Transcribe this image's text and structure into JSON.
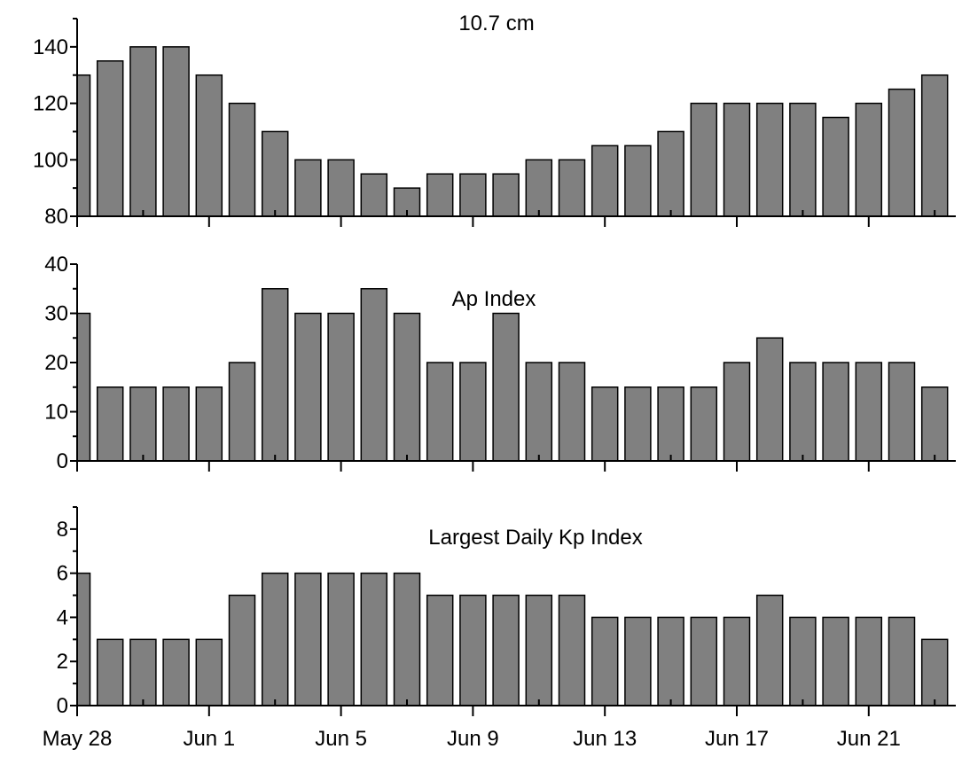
{
  "chart_data": [
    {
      "type": "bar",
      "title": "10.7 cm",
      "x": [
        "May 28",
        "May 29",
        "May 30",
        "May 31",
        "Jun 1",
        "Jun 2",
        "Jun 3",
        "Jun 4",
        "Jun 5",
        "Jun 6",
        "Jun 7",
        "Jun 8",
        "Jun 9",
        "Jun 10",
        "Jun 11",
        "Jun 12",
        "Jun 13",
        "Jun 14",
        "Jun 15",
        "Jun 16",
        "Jun 17",
        "Jun 18",
        "Jun 19",
        "Jun 20",
        "Jun 21",
        "Jun 22",
        "Jun 23"
      ],
      "values": [
        130,
        135,
        140,
        140,
        130,
        120,
        110,
        100,
        100,
        95,
        90,
        95,
        95,
        95,
        100,
        100,
        105,
        105,
        110,
        120,
        120,
        120,
        120,
        115,
        120,
        125,
        130
      ],
      "ylim": [
        80,
        150
      ],
      "yticks": [
        80,
        100,
        120,
        140
      ],
      "xticks": [],
      "xlabel": "",
      "ylabel": "",
      "grid": false
    },
    {
      "type": "bar",
      "title": "Ap Index",
      "x": [
        "May 28",
        "May 29",
        "May 30",
        "May 31",
        "Jun 1",
        "Jun 2",
        "Jun 3",
        "Jun 4",
        "Jun 5",
        "Jun 6",
        "Jun 7",
        "Jun 8",
        "Jun 9",
        "Jun 10",
        "Jun 11",
        "Jun 12",
        "Jun 13",
        "Jun 14",
        "Jun 15",
        "Jun 16",
        "Jun 17",
        "Jun 18",
        "Jun 19",
        "Jun 20",
        "Jun 21",
        "Jun 22",
        "Jun 23"
      ],
      "values": [
        30,
        15,
        15,
        15,
        15,
        20,
        35,
        30,
        30,
        35,
        30,
        20,
        20,
        30,
        20,
        20,
        15,
        15,
        15,
        15,
        20,
        25,
        20,
        20,
        20,
        20,
        15
      ],
      "ylim": [
        0,
        40
      ],
      "yticks": [
        0,
        10,
        20,
        30,
        40
      ],
      "xticks": [],
      "xlabel": "",
      "ylabel": "",
      "grid": false
    },
    {
      "type": "bar",
      "title": "Largest Daily Kp Index",
      "x": [
        "May 28",
        "May 29",
        "May 30",
        "May 31",
        "Jun 1",
        "Jun 2",
        "Jun 3",
        "Jun 4",
        "Jun 5",
        "Jun 6",
        "Jun 7",
        "Jun 8",
        "Jun 9",
        "Jun 10",
        "Jun 11",
        "Jun 12",
        "Jun 13",
        "Jun 14",
        "Jun 15",
        "Jun 16",
        "Jun 17",
        "Jun 18",
        "Jun 19",
        "Jun 20",
        "Jun 21",
        "Jun 22",
        "Jun 23"
      ],
      "values": [
        6,
        3,
        3,
        3,
        3,
        5,
        6,
        6,
        6,
        6,
        6,
        5,
        5,
        5,
        5,
        5,
        4,
        4,
        4,
        4,
        4,
        5,
        4,
        4,
        4,
        4,
        3
      ],
      "ylim": [
        0,
        9
      ],
      "yticks": [
        0,
        2,
        4,
        6,
        8
      ],
      "xticks": [
        "May 28",
        "Jun 1",
        "Jun 5",
        "Jun 9",
        "Jun 13",
        "Jun 17",
        "Jun 21"
      ],
      "xlabel": "",
      "ylabel": "",
      "grid": false
    }
  ],
  "style": {
    "bar_color": "#808080",
    "bar_edge_color": "#000000",
    "axis_color": "#000000",
    "background": "#ffffff"
  }
}
